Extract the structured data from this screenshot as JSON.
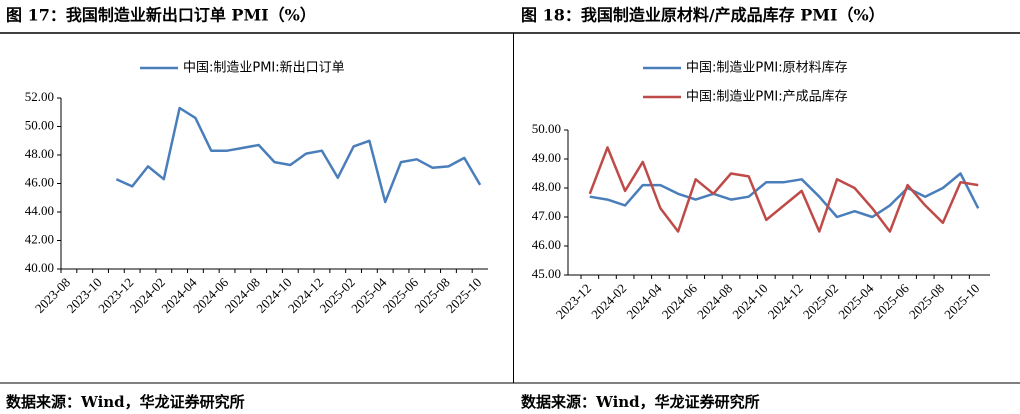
{
  "chart_data": [
    {
      "type": "line",
      "title": "图 17：我国制造业新出口订单 PMI（%）",
      "source": "数据来源：Wind，华龙证券研究所",
      "categories": [
        "2023-08",
        null,
        "2023-10",
        null,
        "2023-12",
        null,
        "2024-02",
        null,
        "2024-04",
        null,
        "2024-06",
        null,
        "2024-08",
        null,
        "2024-10",
        null,
        "2024-12",
        null,
        "2025-02",
        null,
        "2025-04",
        null,
        "2025-06",
        null,
        "2025-08",
        null,
        "2025-10"
      ],
      "series": [
        {
          "name": "中国:制造业PMI:新出口订单",
          "color": "#4a7ebb",
          "values": [
            null,
            null,
            null,
            46.3,
            45.8,
            47.2,
            46.3,
            51.3,
            50.6,
            48.3,
            48.3,
            48.5,
            48.7,
            47.5,
            47.3,
            48.1,
            48.3,
            46.4,
            48.6,
            49.0,
            44.7,
            47.5,
            47.7,
            47.1,
            47.2,
            47.8,
            45.9
          ]
        }
      ],
      "ylim": [
        40,
        52
      ],
      "yticks": [
        {
          "value": 40,
          "label": "40.00"
        },
        {
          "value": 42,
          "label": "42.00"
        },
        {
          "value": 44,
          "label": "44.00"
        },
        {
          "value": 46,
          "label": "46.00"
        },
        {
          "value": 48,
          "label": "48.00"
        },
        {
          "value": 50,
          "label": "50.00"
        },
        {
          "value": 52,
          "label": "52.00"
        }
      ],
      "grid": false,
      "legend": "top"
    },
    {
      "type": "line",
      "title": "图 18：我国制造业原材料/产成品库存 PMI（%）",
      "source": "数据来源：Wind，华龙证券研究所",
      "categories": [
        "2023-12",
        null,
        "2024-02",
        null,
        "2024-04",
        null,
        "2024-06",
        null,
        "2024-08",
        null,
        "2024-10",
        null,
        "2024-12",
        null,
        "2025-02",
        null,
        "2025-04",
        null,
        "2025-06",
        null,
        "2025-08",
        null,
        "2025-10"
      ],
      "series": [
        {
          "name": "中国:制造业PMI:原材料库存",
          "color": "#4a7ebb",
          "values": [
            47.7,
            47.6,
            47.4,
            48.1,
            48.1,
            47.8,
            47.6,
            47.8,
            47.6,
            47.7,
            48.2,
            48.2,
            48.3,
            47.7,
            47.0,
            47.2,
            47.0,
            47.4,
            48.0,
            47.7,
            48.0,
            48.5,
            47.3
          ]
        },
        {
          "name": "中国:制造业PMI:产成品库存",
          "color": "#be4b48",
          "values": [
            47.8,
            49.4,
            47.9,
            48.9,
            47.3,
            46.5,
            48.3,
            47.8,
            48.5,
            48.4,
            46.9,
            47.4,
            47.9,
            46.5,
            48.3,
            48.0,
            47.3,
            46.5,
            48.1,
            47.4,
            46.8,
            48.2,
            48.1
          ]
        }
      ],
      "ylim": [
        45,
        50
      ],
      "yticks": [
        {
          "value": 45,
          "label": "45.00"
        },
        {
          "value": 46,
          "label": "46.00"
        },
        {
          "value": 47,
          "label": "47.00"
        },
        {
          "value": 48,
          "label": "48.00"
        },
        {
          "value": 49,
          "label": "49.00"
        },
        {
          "value": 50,
          "label": "50.00"
        }
      ],
      "grid": false,
      "legend": "top"
    }
  ]
}
